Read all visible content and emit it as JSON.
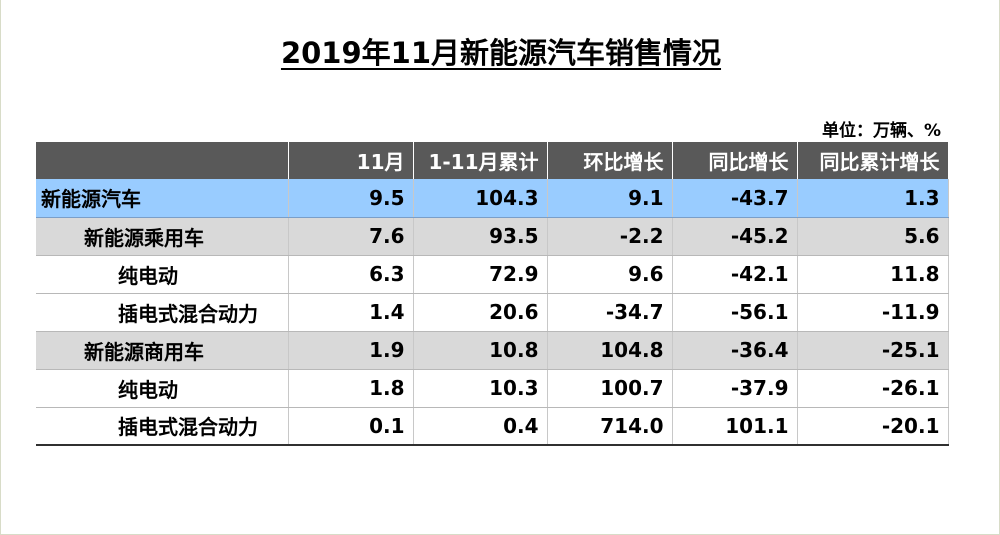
{
  "title": "2019年11月新能源汽车销售情况",
  "unit": "单位：万辆、%",
  "table": {
    "headers": [
      "",
      "11月",
      "1-11月累计",
      "环比增长",
      "同比增长",
      "同比累计增长"
    ],
    "rows": [
      {
        "label": "新能源汽车",
        "values": [
          "9.5",
          "104.3",
          "9.1",
          "-43.7",
          "1.3"
        ]
      },
      {
        "label": "新能源乘用车",
        "values": [
          "7.6",
          "93.5",
          "-2.2",
          "-45.2",
          "5.6"
        ]
      },
      {
        "label": "纯电动",
        "values": [
          "6.3",
          "72.9",
          "9.6",
          "-42.1",
          "11.8"
        ]
      },
      {
        "label": "插电式混合动力",
        "values": [
          "1.4",
          "20.6",
          "-34.7",
          "-56.1",
          "-11.9"
        ]
      },
      {
        "label": "新能源商用车",
        "values": [
          "1.9",
          "10.8",
          "104.8",
          "-36.4",
          "-25.1"
        ]
      },
      {
        "label": "纯电动",
        "values": [
          "1.8",
          "10.3",
          "100.7",
          "-37.9",
          "-26.1"
        ]
      },
      {
        "label": "插电式混合动力",
        "values": [
          "0.1",
          "0.4",
          "714.0",
          "101.1",
          "-20.1"
        ]
      }
    ]
  }
}
